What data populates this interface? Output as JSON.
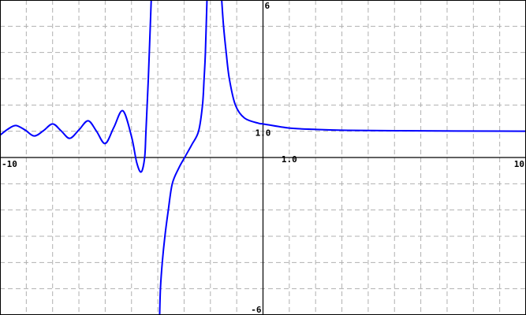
{
  "chart_data": {
    "type": "line",
    "title": "",
    "xlabel": "",
    "ylabel": "",
    "xlim": [
      -10,
      10
    ],
    "ylim": [
      -6,
      6
    ],
    "grid": true,
    "grid_step": 1,
    "tick_labels": {
      "x_min": "-10",
      "x_max": "10",
      "y_max": "6",
      "y_min": "-6",
      "x_unit": "1.0",
      "y_unit": "1.0"
    },
    "colors": {
      "curve": "#0000ff",
      "grid": "#b0b0b0",
      "axis": "#000000",
      "border": "#000000"
    },
    "series": [
      {
        "points": [
          [
            -10,
            0.85
          ],
          [
            -9.7,
            1.08
          ],
          [
            -9.4,
            1.22
          ],
          [
            -9.05,
            1.05
          ],
          [
            -8.7,
            0.82
          ],
          [
            -8.35,
            1.02
          ],
          [
            -8.0,
            1.28
          ],
          [
            -7.68,
            1.02
          ],
          [
            -7.35,
            0.73
          ],
          [
            -7.0,
            1.05
          ],
          [
            -6.65,
            1.4
          ],
          [
            -6.33,
            1.0
          ],
          [
            -6.0,
            0.53
          ],
          [
            -5.67,
            1.15
          ],
          [
            -5.33,
            1.78
          ],
          [
            -5.0,
            0.8
          ],
          [
            -4.8,
            -0.2
          ],
          [
            -4.63,
            -0.55
          ],
          [
            -4.5,
            0
          ],
          [
            -4.45,
            1
          ],
          [
            -4.36,
            3
          ],
          [
            -4.25,
            6
          ],
          [
            -4.22,
            6.5
          ]
        ]
      },
      {
        "points": [
          [
            -3.95,
            -6.5
          ],
          [
            -3.93,
            -6
          ],
          [
            -3.9,
            -5
          ],
          [
            -3.83,
            -4
          ],
          [
            -3.73,
            -3
          ],
          [
            -3.6,
            -2
          ],
          [
            -3.45,
            -1
          ],
          [
            -3.2,
            -0.4
          ],
          [
            -2.98,
            0
          ],
          [
            -2.7,
            0.5
          ],
          [
            -2.45,
            1
          ],
          [
            -2.3,
            2
          ],
          [
            -2.24,
            3
          ],
          [
            -2.19,
            4
          ],
          [
            -2.13,
            6
          ],
          [
            -2.1,
            6.5
          ]
        ]
      },
      {
        "points": [
          [
            -1.6,
            6.5
          ],
          [
            -1.57,
            6
          ],
          [
            -1.5,
            5
          ],
          [
            -1.4,
            4
          ],
          [
            -1.28,
            3
          ],
          [
            -1.05,
            2
          ],
          [
            -0.7,
            1.5
          ],
          [
            -0.15,
            1.3
          ],
          [
            0,
            1.28
          ],
          [
            1,
            1.12
          ],
          [
            2,
            1.07
          ],
          [
            3,
            1.04
          ],
          [
            5,
            1.02
          ],
          [
            10,
            1.0
          ]
        ]
      }
    ]
  }
}
